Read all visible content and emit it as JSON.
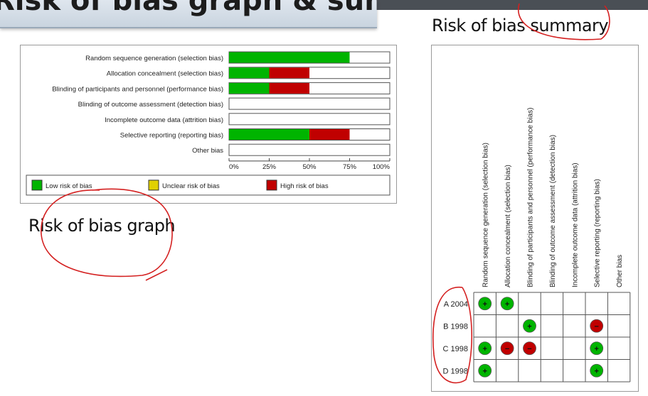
{
  "slide_title": "Risk of bias graph & summary",
  "summary_heading": "Risk of bias summary",
  "graph_heading": "Risk of bias graph",
  "colors": {
    "low": "#00b400",
    "unclear": "#e0d000",
    "high": "#c00000",
    "annotation": "#d42020"
  },
  "chart_data": [
    {
      "type": "bar",
      "orientation": "horizontal",
      "stacked": true,
      "categories": [
        "Random sequence generation (selection bias)",
        "Allocation concealment (selection bias)",
        "Blinding of participants and personnel (performance bias)",
        "Blinding of outcome assessment (detection bias)",
        "Incomplete outcome data (attrition bias)",
        "Selective reporting (reporting bias)",
        "Other bias"
      ],
      "series": [
        {
          "name": "Low risk of bias",
          "color": "#00b400",
          "values": [
            75,
            25,
            25,
            0,
            0,
            50,
            0
          ]
        },
        {
          "name": "Unclear risk of bias",
          "color": "#e0d000",
          "values": [
            0,
            0,
            0,
            0,
            0,
            0,
            0
          ]
        },
        {
          "name": "High risk of bias",
          "color": "#c00000",
          "values": [
            0,
            25,
            25,
            0,
            0,
            25,
            0
          ]
        }
      ],
      "xticks": [
        "0%",
        "25%",
        "50%",
        "75%",
        "100%"
      ],
      "xlim": [
        0,
        100
      ],
      "legend_position": "bottom"
    },
    {
      "type": "table",
      "columns": [
        "Random sequence generation (selection bias)",
        "Allocation concealment (selection bias)",
        "Blinding of participants and personnel (performance bias)",
        "Blinding of outcome assessment (detection bias)",
        "Incomplete outcome data (attrition bias)",
        "Selective reporting (reporting bias)",
        "Other bias"
      ],
      "rows": [
        {
          "study": "A 2004",
          "cells": [
            "low",
            "low",
            "",
            "",
            "",
            "",
            ""
          ]
        },
        {
          "study": "B 1998",
          "cells": [
            "",
            "",
            "low",
            "",
            "",
            "high",
            ""
          ]
        },
        {
          "study": "C 1998",
          "cells": [
            "low",
            "high",
            "high",
            "",
            "",
            "low",
            ""
          ]
        },
        {
          "study": "D 1998",
          "cells": [
            "low",
            "",
            "",
            "",
            "",
            "low",
            ""
          ]
        }
      ],
      "symbols": {
        "low": "+",
        "high": "−"
      }
    }
  ]
}
